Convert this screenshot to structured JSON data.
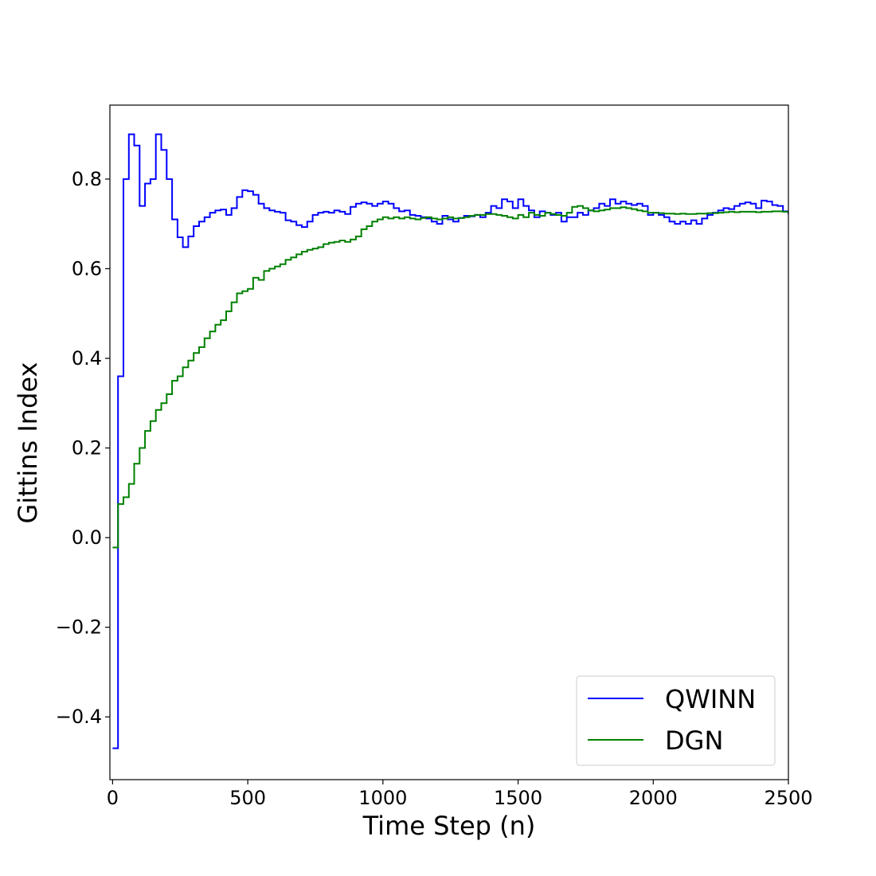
{
  "chart_data": {
    "type": "line",
    "title": "",
    "xlabel": "Time Step (n)",
    "ylabel": "Gittins Index",
    "xlim": [
      -10,
      2500
    ],
    "ylim": [
      -0.54,
      0.965
    ],
    "x_ticks": [
      0,
      500,
      1000,
      1500,
      2000,
      2500
    ],
    "x_tick_labels": [
      "0",
      "500",
      "1000",
      "1500",
      "2000",
      "2500"
    ],
    "y_ticks": [
      -0.4,
      -0.2,
      0.0,
      0.2,
      0.4,
      0.6,
      0.8
    ],
    "y_tick_labels": [
      "−0.4",
      "−0.2",
      "0.0",
      "0.2",
      "0.4",
      "0.6",
      "0.8"
    ],
    "grid": false,
    "legend_position": "lower-right",
    "step_style": "post",
    "series": [
      {
        "name": "QWINN",
        "color": "#0000ff",
        "points": [
          [
            0,
            -0.47
          ],
          [
            20,
            0.36
          ],
          [
            40,
            0.8
          ],
          [
            60,
            0.9
          ],
          [
            80,
            0.875
          ],
          [
            100,
            0.74
          ],
          [
            120,
            0.79
          ],
          [
            140,
            0.8
          ],
          [
            160,
            0.9
          ],
          [
            180,
            0.865
          ],
          [
            200,
            0.8
          ],
          [
            220,
            0.71
          ],
          [
            240,
            0.67
          ],
          [
            260,
            0.648
          ],
          [
            280,
            0.672
          ],
          [
            300,
            0.695
          ],
          [
            320,
            0.705
          ],
          [
            340,
            0.715
          ],
          [
            360,
            0.725
          ],
          [
            380,
            0.73
          ],
          [
            400,
            0.732
          ],
          [
            420,
            0.72
          ],
          [
            440,
            0.735
          ],
          [
            460,
            0.76
          ],
          [
            480,
            0.775
          ],
          [
            500,
            0.773
          ],
          [
            520,
            0.765
          ],
          [
            540,
            0.745
          ],
          [
            560,
            0.735
          ],
          [
            580,
            0.73
          ],
          [
            600,
            0.727
          ],
          [
            620,
            0.725
          ],
          [
            640,
            0.708
          ],
          [
            660,
            0.705
          ],
          [
            680,
            0.697
          ],
          [
            700,
            0.693
          ],
          [
            720,
            0.705
          ],
          [
            740,
            0.72
          ],
          [
            760,
            0.725
          ],
          [
            780,
            0.727
          ],
          [
            800,
            0.725
          ],
          [
            820,
            0.73
          ],
          [
            840,
            0.727
          ],
          [
            860,
            0.722
          ],
          [
            880,
            0.738
          ],
          [
            900,
            0.745
          ],
          [
            920,
            0.748
          ],
          [
            940,
            0.745
          ],
          [
            960,
            0.74
          ],
          [
            980,
            0.745
          ],
          [
            1000,
            0.75
          ],
          [
            1020,
            0.745
          ],
          [
            1040,
            0.735
          ],
          [
            1060,
            0.728
          ],
          [
            1080,
            0.73
          ],
          [
            1100,
            0.72
          ],
          [
            1120,
            0.718
          ],
          [
            1140,
            0.715
          ],
          [
            1160,
            0.712
          ],
          [
            1180,
            0.705
          ],
          [
            1200,
            0.7
          ],
          [
            1220,
            0.718
          ],
          [
            1240,
            0.71
          ],
          [
            1260,
            0.705
          ],
          [
            1280,
            0.713
          ],
          [
            1300,
            0.718
          ],
          [
            1320,
            0.717
          ],
          [
            1340,
            0.72
          ],
          [
            1360,
            0.715
          ],
          [
            1380,
            0.725
          ],
          [
            1400,
            0.74
          ],
          [
            1420,
            0.735
          ],
          [
            1440,
            0.755
          ],
          [
            1460,
            0.75
          ],
          [
            1480,
            0.735
          ],
          [
            1500,
            0.755
          ],
          [
            1520,
            0.74
          ],
          [
            1540,
            0.73
          ],
          [
            1560,
            0.715
          ],
          [
            1580,
            0.728
          ],
          [
            1600,
            0.725
          ],
          [
            1620,
            0.72
          ],
          [
            1640,
            0.725
          ],
          [
            1660,
            0.705
          ],
          [
            1680,
            0.715
          ],
          [
            1700,
            0.715
          ],
          [
            1720,
            0.725
          ],
          [
            1740,
            0.72
          ],
          [
            1760,
            0.73
          ],
          [
            1780,
            0.735
          ],
          [
            1800,
            0.745
          ],
          [
            1820,
            0.74
          ],
          [
            1840,
            0.755
          ],
          [
            1860,
            0.745
          ],
          [
            1880,
            0.75
          ],
          [
            1900,
            0.745
          ],
          [
            1920,
            0.742
          ],
          [
            1940,
            0.745
          ],
          [
            1960,
            0.74
          ],
          [
            1980,
            0.72
          ],
          [
            2000,
            0.725
          ],
          [
            2020,
            0.72
          ],
          [
            2040,
            0.715
          ],
          [
            2060,
            0.705
          ],
          [
            2080,
            0.7
          ],
          [
            2100,
            0.705
          ],
          [
            2120,
            0.7
          ],
          [
            2140,
            0.708
          ],
          [
            2160,
            0.7
          ],
          [
            2180,
            0.712
          ],
          [
            2200,
            0.72
          ],
          [
            2220,
            0.725
          ],
          [
            2240,
            0.73
          ],
          [
            2260,
            0.735
          ],
          [
            2280,
            0.733
          ],
          [
            2300,
            0.74
          ],
          [
            2320,
            0.745
          ],
          [
            2340,
            0.748
          ],
          [
            2360,
            0.745
          ],
          [
            2380,
            0.735
          ],
          [
            2400,
            0.752
          ],
          [
            2420,
            0.75
          ],
          [
            2440,
            0.742
          ],
          [
            2460,
            0.74
          ],
          [
            2480,
            0.728
          ],
          [
            2500,
            0.722
          ]
        ]
      },
      {
        "name": "DGN",
        "color": "#008000",
        "points": [
          [
            0,
            -0.022
          ],
          [
            20,
            0.075
          ],
          [
            40,
            0.09
          ],
          [
            60,
            0.12
          ],
          [
            80,
            0.165
          ],
          [
            100,
            0.2
          ],
          [
            120,
            0.238
          ],
          [
            140,
            0.26
          ],
          [
            160,
            0.285
          ],
          [
            180,
            0.3
          ],
          [
            200,
            0.32
          ],
          [
            220,
            0.35
          ],
          [
            240,
            0.36
          ],
          [
            260,
            0.38
          ],
          [
            280,
            0.395
          ],
          [
            300,
            0.412
          ],
          [
            320,
            0.425
          ],
          [
            340,
            0.445
          ],
          [
            360,
            0.46
          ],
          [
            380,
            0.475
          ],
          [
            400,
            0.485
          ],
          [
            420,
            0.505
          ],
          [
            440,
            0.525
          ],
          [
            460,
            0.545
          ],
          [
            480,
            0.55
          ],
          [
            500,
            0.555
          ],
          [
            520,
            0.58
          ],
          [
            540,
            0.575
          ],
          [
            560,
            0.595
          ],
          [
            580,
            0.6
          ],
          [
            600,
            0.605
          ],
          [
            620,
            0.61
          ],
          [
            640,
            0.62
          ],
          [
            660,
            0.625
          ],
          [
            680,
            0.632
          ],
          [
            700,
            0.638
          ],
          [
            720,
            0.642
          ],
          [
            740,
            0.645
          ],
          [
            760,
            0.648
          ],
          [
            780,
            0.655
          ],
          [
            800,
            0.658
          ],
          [
            820,
            0.66
          ],
          [
            840,
            0.663
          ],
          [
            860,
            0.66
          ],
          [
            880,
            0.665
          ],
          [
            900,
            0.672
          ],
          [
            920,
            0.688
          ],
          [
            940,
            0.695
          ],
          [
            960,
            0.705
          ],
          [
            980,
            0.71
          ],
          [
            1000,
            0.715
          ],
          [
            1020,
            0.712
          ],
          [
            1040,
            0.715
          ],
          [
            1060,
            0.712
          ],
          [
            1080,
            0.715
          ],
          [
            1100,
            0.712
          ],
          [
            1120,
            0.71
          ],
          [
            1140,
            0.713
          ],
          [
            1160,
            0.715
          ],
          [
            1180,
            0.712
          ],
          [
            1200,
            0.71
          ],
          [
            1220,
            0.712
          ],
          [
            1240,
            0.715
          ],
          [
            1260,
            0.712
          ],
          [
            1280,
            0.713
          ],
          [
            1300,
            0.715
          ],
          [
            1320,
            0.718
          ],
          [
            1340,
            0.72
          ],
          [
            1360,
            0.72
          ],
          [
            1380,
            0.722
          ],
          [
            1400,
            0.722
          ],
          [
            1420,
            0.72
          ],
          [
            1440,
            0.718
          ],
          [
            1460,
            0.715
          ],
          [
            1480,
            0.712
          ],
          [
            1500,
            0.72
          ],
          [
            1520,
            0.715
          ],
          [
            1540,
            0.725
          ],
          [
            1560,
            0.72
          ],
          [
            1580,
            0.718
          ],
          [
            1600,
            0.725
          ],
          [
            1620,
            0.722
          ],
          [
            1640,
            0.72
          ],
          [
            1660,
            0.718
          ],
          [
            1680,
            0.725
          ],
          [
            1700,
            0.738
          ],
          [
            1720,
            0.74
          ],
          [
            1740,
            0.735
          ],
          [
            1760,
            0.73
          ],
          [
            1780,
            0.728
          ],
          [
            1800,
            0.73
          ],
          [
            1820,
            0.732
          ],
          [
            1840,
            0.735
          ],
          [
            1860,
            0.735
          ],
          [
            1880,
            0.737
          ],
          [
            1900,
            0.735
          ],
          [
            1920,
            0.733
          ],
          [
            1940,
            0.73
          ],
          [
            1960,
            0.728
          ],
          [
            1980,
            0.725
          ],
          [
            2000,
            0.725
          ],
          [
            2020,
            0.724
          ],
          [
            2040,
            0.723
          ],
          [
            2060,
            0.723
          ],
          [
            2080,
            0.722
          ],
          [
            2100,
            0.723
          ],
          [
            2120,
            0.722
          ],
          [
            2140,
            0.722
          ],
          [
            2160,
            0.723
          ],
          [
            2180,
            0.723
          ],
          [
            2200,
            0.724
          ],
          [
            2220,
            0.724
          ],
          [
            2240,
            0.725
          ],
          [
            2260,
            0.726
          ],
          [
            2280,
            0.727
          ],
          [
            2300,
            0.726
          ],
          [
            2320,
            0.727
          ],
          [
            2340,
            0.727
          ],
          [
            2360,
            0.727
          ],
          [
            2380,
            0.726
          ],
          [
            2400,
            0.727
          ],
          [
            2420,
            0.727
          ],
          [
            2440,
            0.728
          ],
          [
            2460,
            0.728
          ],
          [
            2480,
            0.727
          ],
          [
            2500,
            0.726
          ]
        ]
      }
    ]
  }
}
